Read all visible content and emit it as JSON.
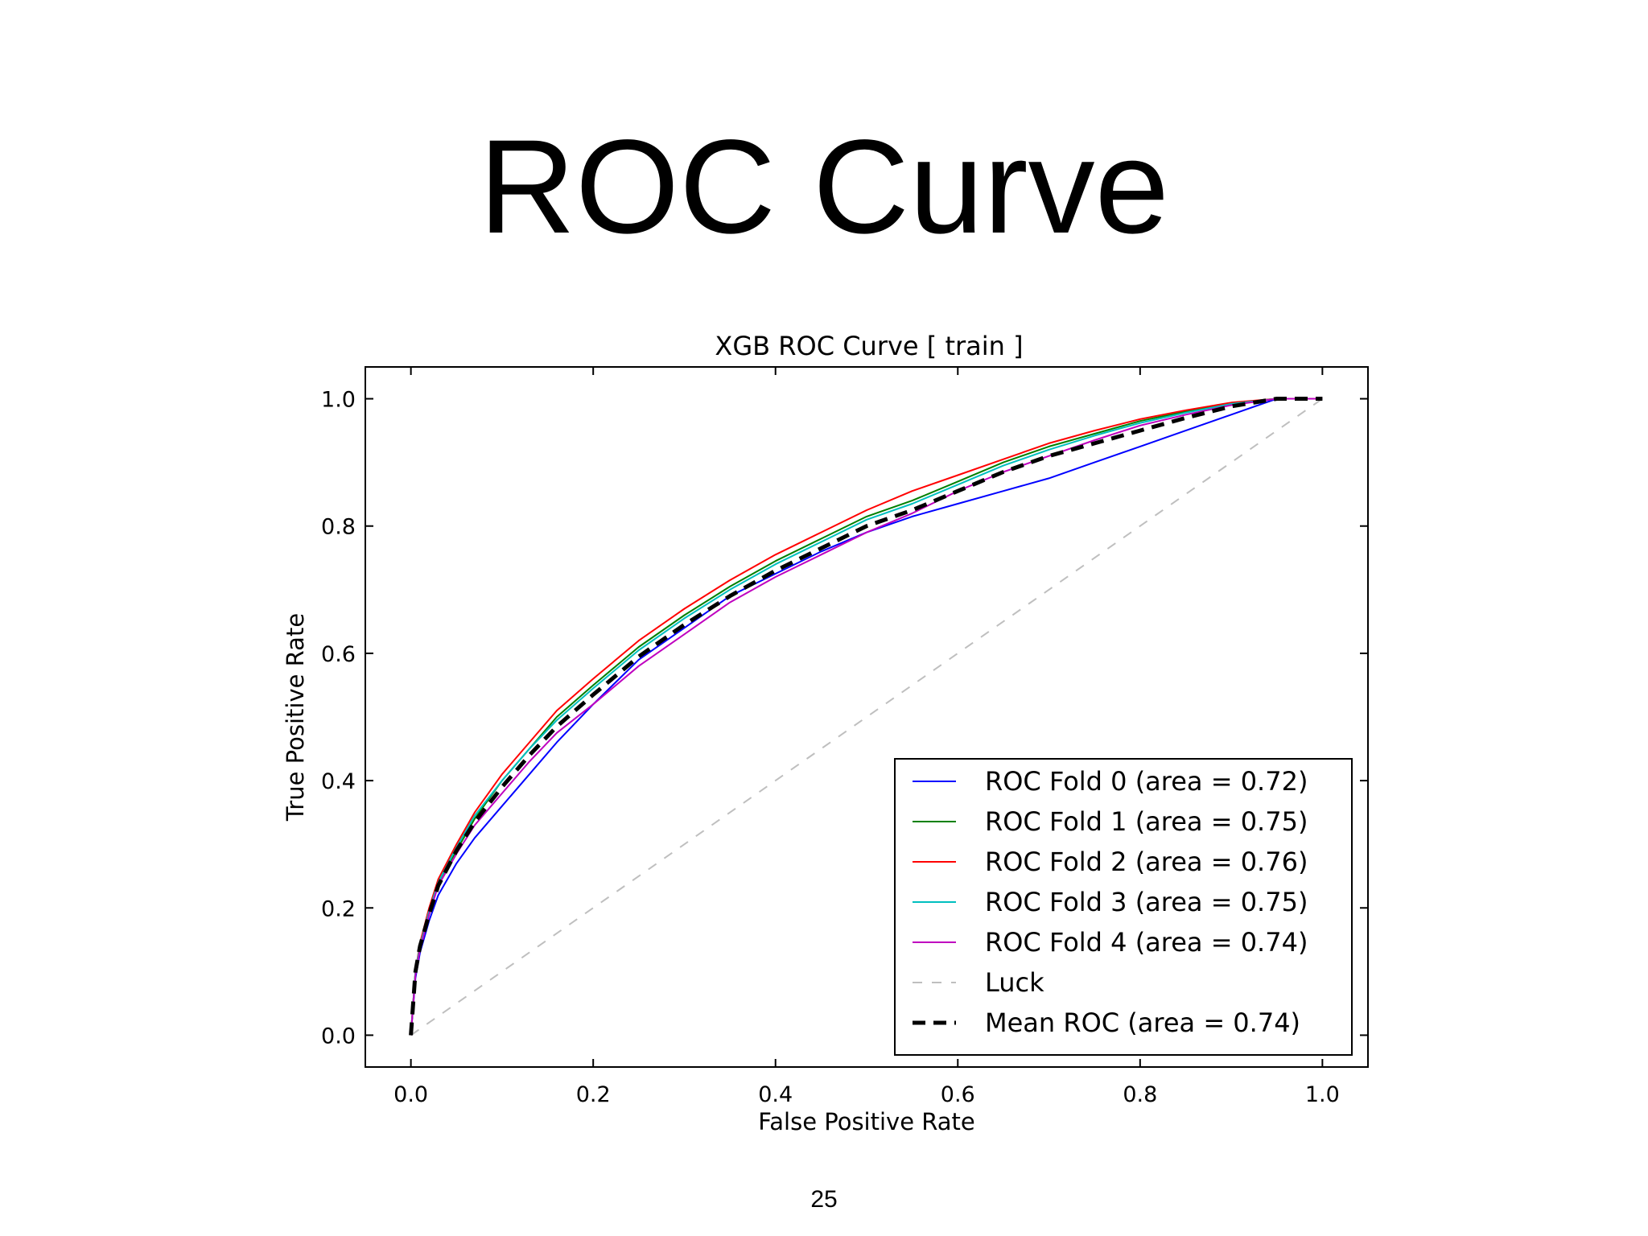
{
  "slide": {
    "title": "ROC Curve",
    "page_number": "25"
  },
  "chart_data": {
    "type": "line",
    "title": "XGB ROC Curve [ train ]",
    "xlabel": "False Positive Rate",
    "ylabel": "True Positive Rate",
    "xlim": [
      -0.05,
      1.05
    ],
    "ylim": [
      -0.05,
      1.05
    ],
    "xticks": [
      "0.0",
      "0.2",
      "0.4",
      "0.6",
      "0.8",
      "1.0"
    ],
    "yticks": [
      "0.0",
      "0.2",
      "0.4",
      "0.6",
      "0.8",
      "1.0"
    ],
    "grid": false,
    "legend_position": "lower-right",
    "series": [
      {
        "name": "ROC Fold 0 (area = 0.72)",
        "color": "#0000ff",
        "style": "solid",
        "x": [
          0,
          0.005,
          0.01,
          0.02,
          0.03,
          0.05,
          0.07,
          0.1,
          0.13,
          0.16,
          0.2,
          0.25,
          0.3,
          0.35,
          0.4,
          0.45,
          0.5,
          0.55,
          0.6,
          0.65,
          0.7,
          0.75,
          0.8,
          0.85,
          0.9,
          0.95,
          1.0
        ],
        "y": [
          0,
          0.09,
          0.13,
          0.18,
          0.22,
          0.27,
          0.31,
          0.36,
          0.41,
          0.46,
          0.52,
          0.59,
          0.64,
          0.69,
          0.725,
          0.76,
          0.79,
          0.815,
          0.835,
          0.855,
          0.875,
          0.9,
          0.925,
          0.95,
          0.975,
          1.0,
          1.0
        ]
      },
      {
        "name": "ROC Fold 1 (area = 0.75)",
        "color": "#008000",
        "style": "solid",
        "x": [
          0,
          0.005,
          0.01,
          0.02,
          0.03,
          0.05,
          0.07,
          0.1,
          0.13,
          0.16,
          0.2,
          0.25,
          0.3,
          0.35,
          0.4,
          0.45,
          0.5,
          0.55,
          0.6,
          0.65,
          0.7,
          0.75,
          0.8,
          0.85,
          0.9,
          0.95,
          1.0
        ],
        "y": [
          0,
          0.1,
          0.14,
          0.19,
          0.24,
          0.29,
          0.34,
          0.4,
          0.45,
          0.5,
          0.55,
          0.61,
          0.66,
          0.705,
          0.745,
          0.78,
          0.815,
          0.84,
          0.87,
          0.9,
          0.925,
          0.945,
          0.965,
          0.98,
          0.993,
          1.0,
          1.0
        ]
      },
      {
        "name": "ROC Fold 2 (area = 0.76)",
        "color": "#ff0000",
        "style": "solid",
        "x": [
          0,
          0.005,
          0.01,
          0.02,
          0.03,
          0.05,
          0.07,
          0.1,
          0.13,
          0.16,
          0.2,
          0.25,
          0.3,
          0.35,
          0.4,
          0.45,
          0.5,
          0.55,
          0.6,
          0.65,
          0.7,
          0.75,
          0.8,
          0.85,
          0.9,
          0.95,
          1.0
        ],
        "y": [
          0,
          0.1,
          0.145,
          0.2,
          0.245,
          0.3,
          0.35,
          0.41,
          0.46,
          0.51,
          0.56,
          0.62,
          0.67,
          0.715,
          0.755,
          0.79,
          0.825,
          0.855,
          0.88,
          0.905,
          0.93,
          0.95,
          0.968,
          0.982,
          0.994,
          1.0,
          1.0
        ]
      },
      {
        "name": "ROC Fold 3 (area = 0.75)",
        "color": "#00bfbf",
        "style": "solid",
        "x": [
          0,
          0.005,
          0.01,
          0.02,
          0.03,
          0.05,
          0.07,
          0.1,
          0.13,
          0.16,
          0.2,
          0.25,
          0.3,
          0.35,
          0.4,
          0.45,
          0.5,
          0.55,
          0.6,
          0.65,
          0.7,
          0.75,
          0.8,
          0.85,
          0.9,
          0.95,
          1.0
        ],
        "y": [
          0,
          0.1,
          0.14,
          0.195,
          0.24,
          0.295,
          0.345,
          0.4,
          0.45,
          0.495,
          0.545,
          0.605,
          0.655,
          0.7,
          0.74,
          0.775,
          0.81,
          0.835,
          0.865,
          0.895,
          0.92,
          0.942,
          0.962,
          0.978,
          0.992,
          1.0,
          1.0
        ]
      },
      {
        "name": "ROC Fold 4 (area = 0.74)",
        "color": "#bf00bf",
        "style": "solid",
        "x": [
          0,
          0.005,
          0.01,
          0.02,
          0.03,
          0.05,
          0.07,
          0.1,
          0.13,
          0.16,
          0.2,
          0.25,
          0.3,
          0.35,
          0.4,
          0.45,
          0.5,
          0.55,
          0.6,
          0.65,
          0.7,
          0.75,
          0.8,
          0.85,
          0.9,
          0.95,
          1.0
        ],
        "y": [
          0,
          0.095,
          0.135,
          0.19,
          0.235,
          0.285,
          0.33,
          0.38,
          0.43,
          0.475,
          0.52,
          0.58,
          0.63,
          0.68,
          0.72,
          0.755,
          0.79,
          0.82,
          0.855,
          0.885,
          0.91,
          0.935,
          0.958,
          0.975,
          0.99,
          1.0,
          1.0
        ]
      },
      {
        "name": "Luck",
        "color": "#bfbfbf",
        "style": "dashed",
        "x": [
          0,
          1
        ],
        "y": [
          0,
          1
        ]
      },
      {
        "name": "Mean ROC (area = 0.74)",
        "color": "#000000",
        "style": "bold-dashed",
        "x": [
          0,
          0.005,
          0.01,
          0.02,
          0.03,
          0.05,
          0.07,
          0.1,
          0.13,
          0.16,
          0.2,
          0.25,
          0.3,
          0.35,
          0.4,
          0.45,
          0.5,
          0.55,
          0.6,
          0.65,
          0.7,
          0.75,
          0.8,
          0.85,
          0.9,
          0.95,
          1.0
        ],
        "y": [
          0,
          0.1,
          0.14,
          0.19,
          0.235,
          0.29,
          0.335,
          0.39,
          0.44,
          0.485,
          0.535,
          0.595,
          0.645,
          0.69,
          0.73,
          0.765,
          0.8,
          0.825,
          0.855,
          0.885,
          0.91,
          0.93,
          0.95,
          0.97,
          0.988,
          1.0,
          1.0
        ]
      }
    ]
  }
}
